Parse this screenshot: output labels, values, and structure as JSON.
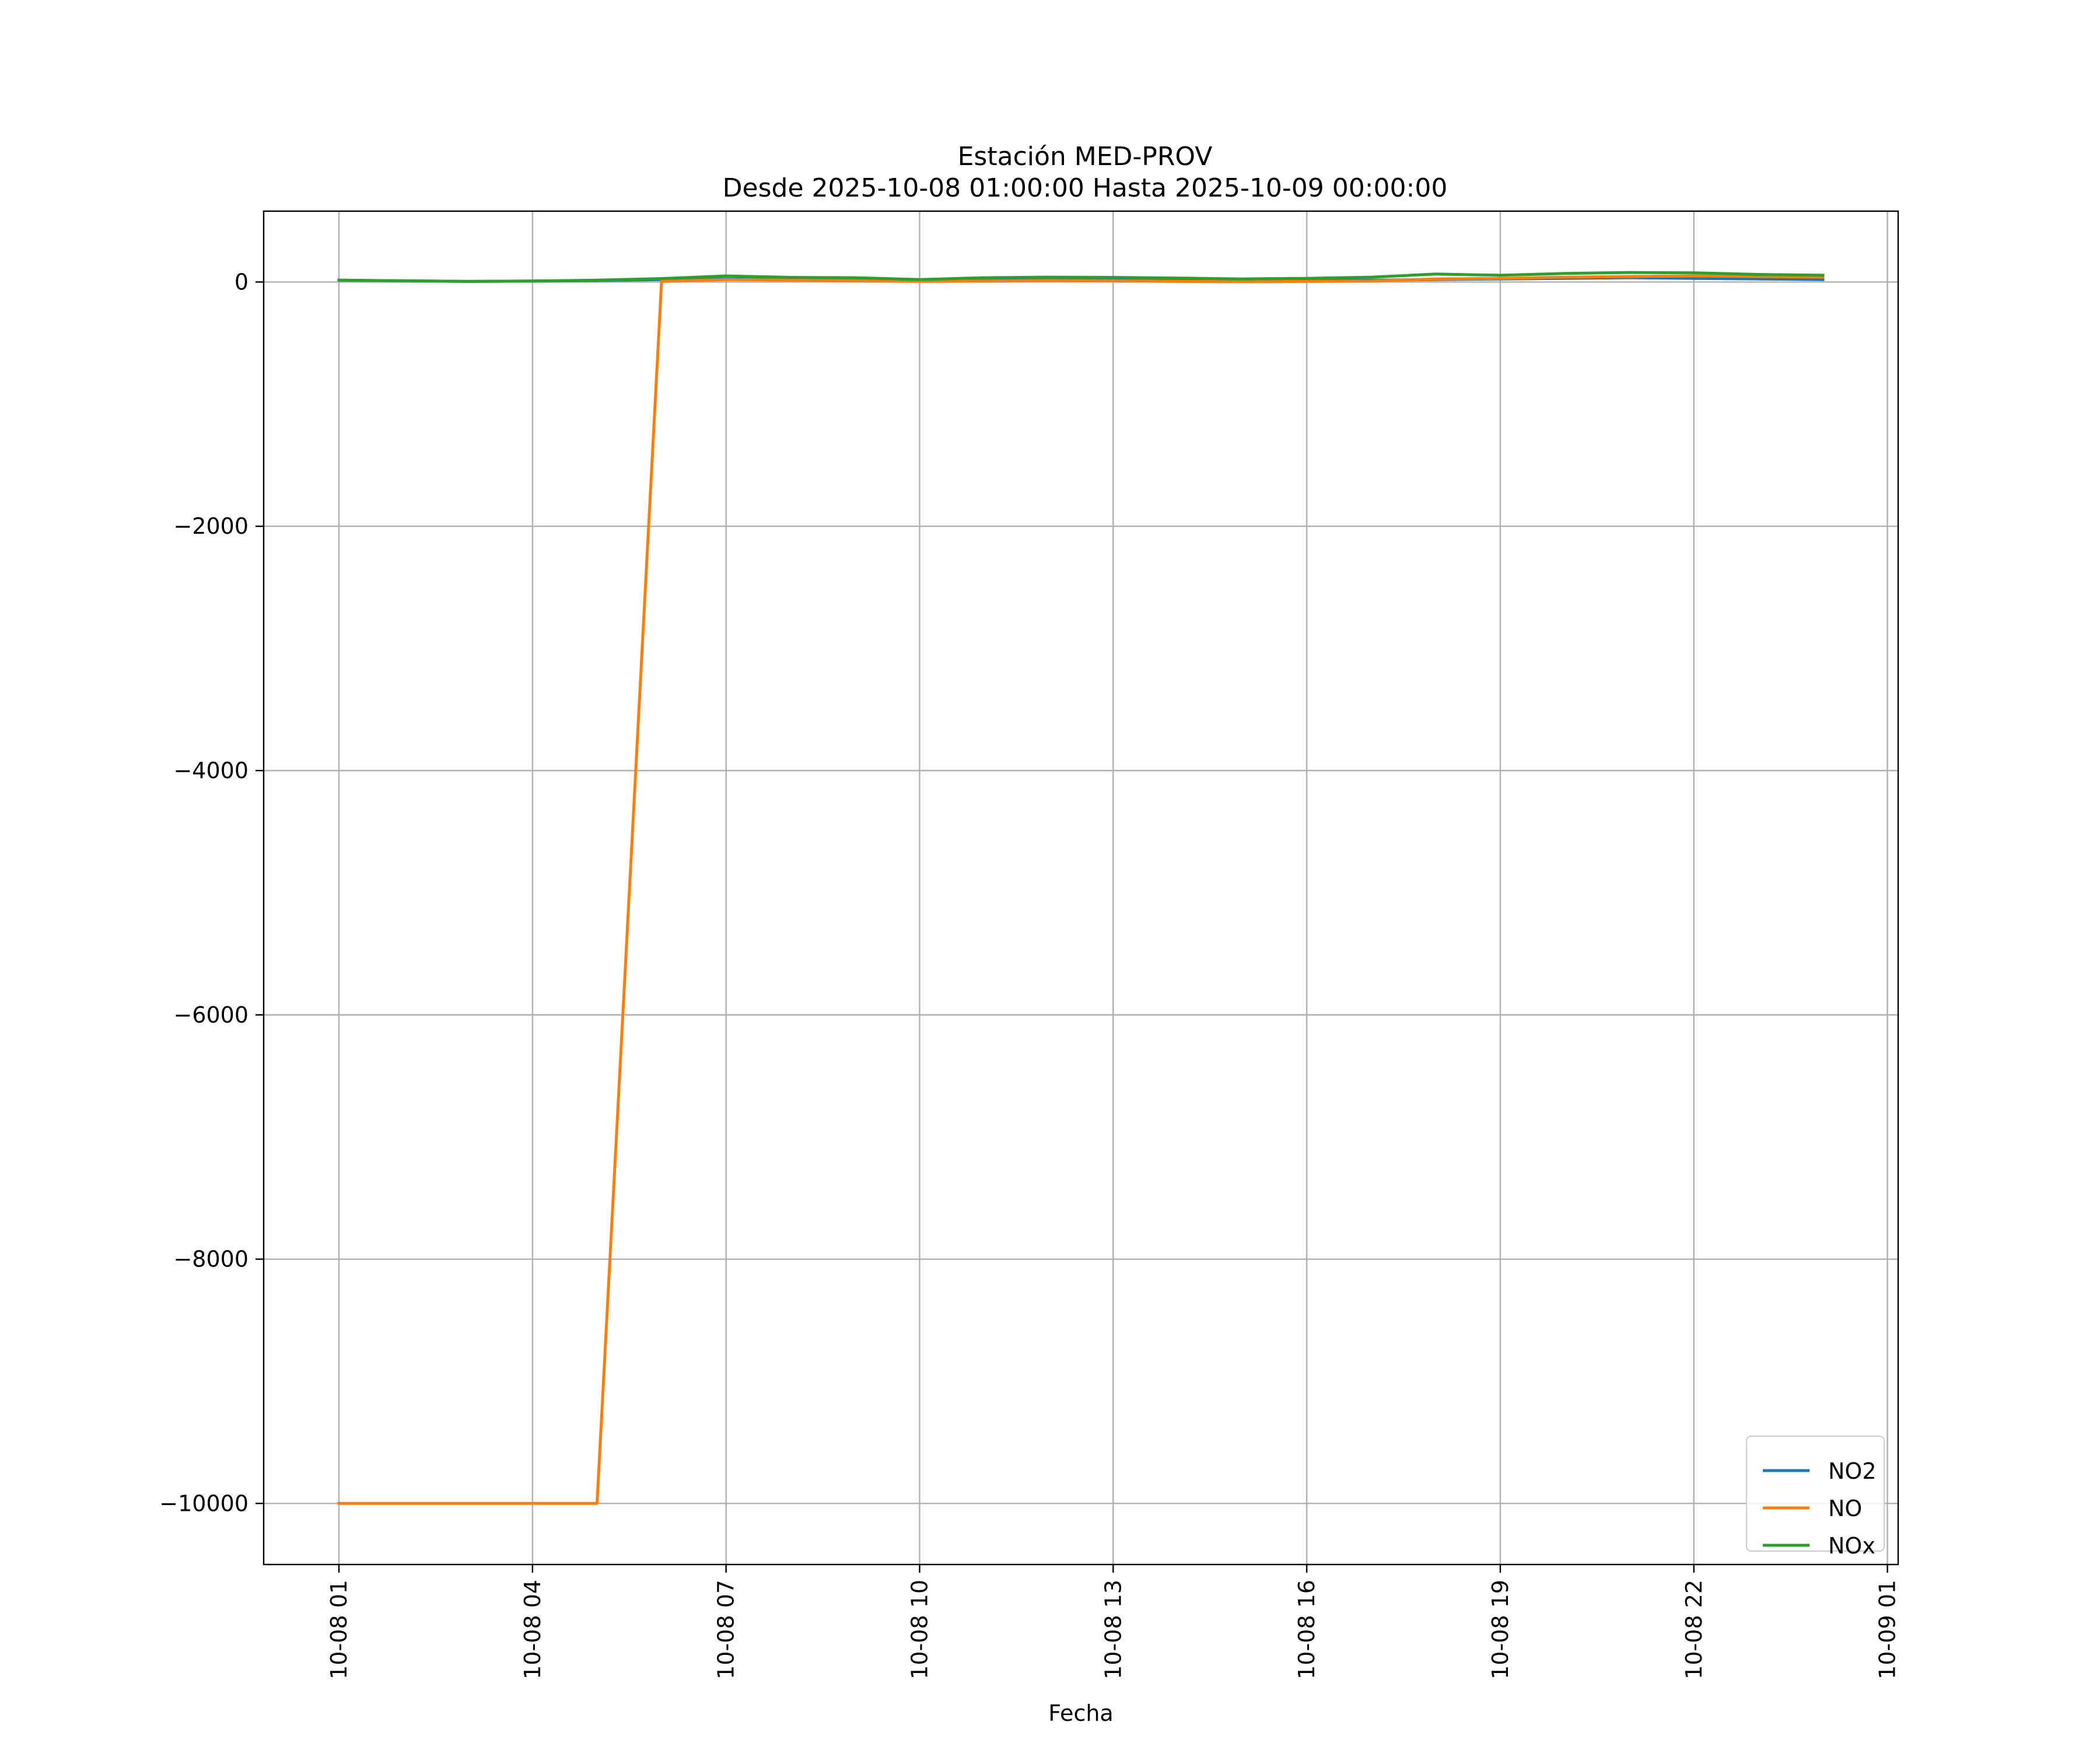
{
  "chart_data": {
    "type": "line",
    "title": "Estación MED-PROV",
    "subtitle": "Desde 2025-10-08 01:00:00 Hasta 2025-10-09 00:00:00",
    "xlabel": "Fecha",
    "ylabel": "",
    "x": [
      "2025-10-08 01:00",
      "2025-10-08 02:00",
      "2025-10-08 03:00",
      "2025-10-08 04:00",
      "2025-10-08 05:00",
      "2025-10-08 06:00",
      "2025-10-08 07:00",
      "2025-10-08 08:00",
      "2025-10-08 09:00",
      "2025-10-08 10:00",
      "2025-10-08 11:00",
      "2025-10-08 12:00",
      "2025-10-08 13:00",
      "2025-10-08 14:00",
      "2025-10-08 15:00",
      "2025-10-08 16:00",
      "2025-10-08 17:00",
      "2025-10-08 18:00",
      "2025-10-08 19:00",
      "2025-10-08 20:00",
      "2025-10-08 21:00",
      "2025-10-08 22:00",
      "2025-10-08 23:00",
      "2025-10-09 00:00"
    ],
    "x_range": [
      "2025-10-07 23:50",
      "2025-10-09 01:10"
    ],
    "xticks": [
      {
        "value": "2025-10-08 01:00",
        "label": "10-08 01"
      },
      {
        "value": "2025-10-08 04:00",
        "label": "10-08 04"
      },
      {
        "value": "2025-10-08 07:00",
        "label": "10-08 07"
      },
      {
        "value": "2025-10-08 10:00",
        "label": "10-08 10"
      },
      {
        "value": "2025-10-08 13:00",
        "label": "10-08 13"
      },
      {
        "value": "2025-10-08 16:00",
        "label": "10-08 16"
      },
      {
        "value": "2025-10-08 19:00",
        "label": "10-08 19"
      },
      {
        "value": "2025-10-08 22:00",
        "label": "10-08 22"
      },
      {
        "value": "2025-10-09 01:00",
        "label": "10-09 01"
      }
    ],
    "ylim": [
      -10500,
      580
    ],
    "yticks": [
      {
        "value": 0,
        "label": "0"
      },
      {
        "value": -2000,
        "label": "−2000"
      },
      {
        "value": -4000,
        "label": "−4000"
      },
      {
        "value": -6000,
        "label": "−6000"
      },
      {
        "value": -8000,
        "label": "−8000"
      },
      {
        "value": -10000,
        "label": "−10000"
      }
    ],
    "grid": true,
    "legend_position": "lower-right",
    "series": [
      {
        "name": "NO2",
        "color": "#1f77b4",
        "values": [
          15,
          10,
          5,
          8,
          12,
          20,
          25,
          20,
          18,
          10,
          15,
          20,
          18,
          15,
          10,
          12,
          15,
          20,
          25,
          30,
          35,
          30,
          25,
          20
        ]
      },
      {
        "name": "NO",
        "color": "#ff7f0e",
        "values": [
          -10000,
          -10000,
          -10000,
          -10000,
          -10000,
          5,
          20,
          15,
          10,
          5,
          8,
          12,
          10,
          5,
          3,
          5,
          8,
          25,
          30,
          40,
          45,
          50,
          45,
          40
        ]
      },
      {
        "name": "NOx",
        "color": "#2ca02c",
        "values": [
          15,
          10,
          5,
          8,
          15,
          28,
          50,
          38,
          35,
          20,
          35,
          40,
          38,
          32,
          25,
          30,
          40,
          65,
          55,
          70,
          78,
          75,
          62,
          55
        ]
      }
    ]
  }
}
